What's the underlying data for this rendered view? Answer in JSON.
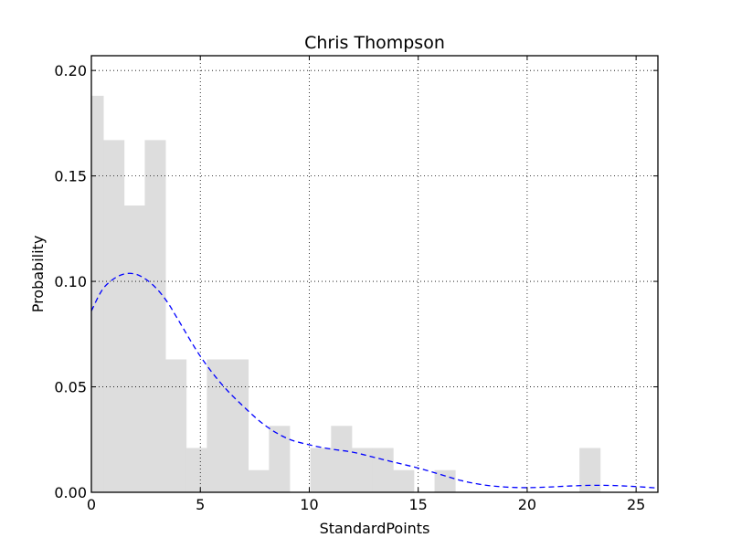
{
  "chart_data": {
    "type": "bar",
    "title": "Chris Thompson",
    "xlabel": "StandardPoints",
    "ylabel": "Probability",
    "xlim": [
      0,
      26
    ],
    "ylim": [
      0,
      0.207
    ],
    "xticks": [
      0,
      5,
      10,
      15,
      20,
      25
    ],
    "yticks": [
      0.0,
      0.05,
      0.1,
      0.15,
      0.2
    ],
    "xtick_labels": [
      "0",
      "5",
      "10",
      "15",
      "20",
      "25"
    ],
    "ytick_labels": [
      "0.00",
      "0.05",
      "0.10",
      "0.15",
      "0.20"
    ],
    "grid": true,
    "histogram": {
      "color": "#dddddd",
      "bins": [
        {
          "x0": -0.5,
          "x1": 0.55,
          "value": 0.188
        },
        {
          "x0": 0.55,
          "x1": 1.5,
          "value": 0.167
        },
        {
          "x0": 1.5,
          "x1": 2.45,
          "value": 0.136
        },
        {
          "x0": 2.45,
          "x1": 3.4,
          "value": 0.167
        },
        {
          "x0": 3.4,
          "x1": 4.35,
          "value": 0.063
        },
        {
          "x0": 4.35,
          "x1": 5.3,
          "value": 0.021
        },
        {
          "x0": 5.3,
          "x1": 6.25,
          "value": 0.063
        },
        {
          "x0": 6.25,
          "x1": 7.2,
          "value": 0.063
        },
        {
          "x0": 7.2,
          "x1": 8.15,
          "value": 0.0105
        },
        {
          "x0": 8.15,
          "x1": 9.1,
          "value": 0.0315
        },
        {
          "x0": 9.1,
          "x1": 10.05,
          "value": 0.0
        },
        {
          "x0": 10.05,
          "x1": 11.0,
          "value": 0.021
        },
        {
          "x0": 11.0,
          "x1": 11.95,
          "value": 0.0315
        },
        {
          "x0": 11.95,
          "x1": 12.9,
          "value": 0.021
        },
        {
          "x0": 12.9,
          "x1": 13.85,
          "value": 0.021
        },
        {
          "x0": 13.85,
          "x1": 14.8,
          "value": 0.0105
        },
        {
          "x0": 14.8,
          "x1": 15.75,
          "value": 0.0
        },
        {
          "x0": 15.75,
          "x1": 16.7,
          "value": 0.0105
        },
        {
          "x0": 16.7,
          "x1": 17.65,
          "value": 0.0
        },
        {
          "x0": 17.65,
          "x1": 18.6,
          "value": 0.0
        },
        {
          "x0": 18.6,
          "x1": 19.55,
          "value": 0.0
        },
        {
          "x0": 19.55,
          "x1": 20.5,
          "value": 0.0
        },
        {
          "x0": 20.5,
          "x1": 21.45,
          "value": 0.0
        },
        {
          "x0": 21.45,
          "x1": 22.4,
          "value": 0.0
        },
        {
          "x0": 22.4,
          "x1": 23.35,
          "value": 0.021
        }
      ]
    },
    "density_curve": {
      "color": "#0000ff",
      "style": "dashed",
      "x": [
        0,
        0.5,
        1,
        1.5,
        2,
        2.5,
        3,
        3.5,
        4,
        5,
        6,
        7,
        8,
        9,
        10,
        11,
        12,
        13,
        14,
        15,
        16,
        17,
        18,
        19,
        20,
        21,
        22,
        23,
        24,
        25,
        26
      ],
      "y": [
        0.086,
        0.096,
        0.101,
        0.1035,
        0.1035,
        0.101,
        0.0965,
        0.09,
        0.0815,
        0.0645,
        0.051,
        0.0405,
        0.0315,
        0.0255,
        0.0225,
        0.0205,
        0.019,
        0.0165,
        0.014,
        0.0115,
        0.0085,
        0.0055,
        0.0035,
        0.0025,
        0.0022,
        0.0025,
        0.003,
        0.0033,
        0.0032,
        0.0027,
        0.002
      ]
    }
  }
}
